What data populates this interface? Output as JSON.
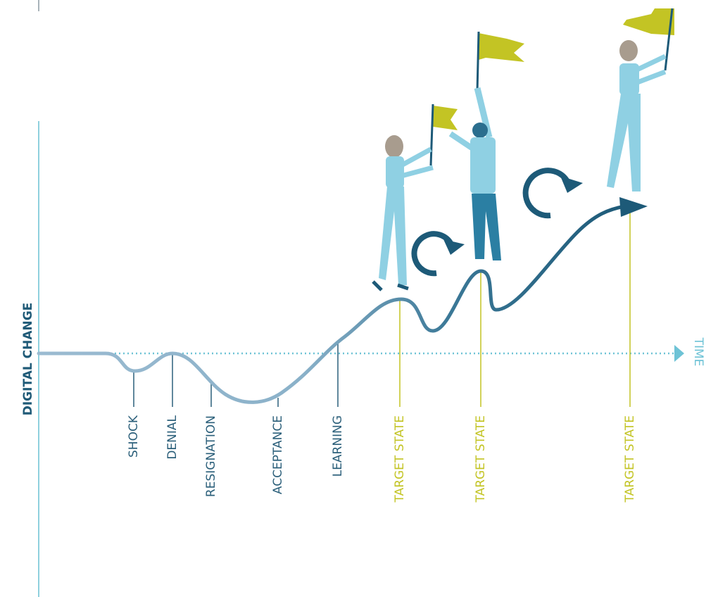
{
  "axes": {
    "y_label": "DIGITAL CHANGE",
    "x_label": "TIME"
  },
  "stages": [
    {
      "label": "SHOCK",
      "color": "#2b5f7a"
    },
    {
      "label": "DENIAL",
      "color": "#2b5f7a"
    },
    {
      "label": "RESIGNATION",
      "color": "#2b5f7a"
    },
    {
      "label": "ACCEPTANCE",
      "color": "#2b5f7a"
    },
    {
      "label": "LEARNING",
      "color": "#2b5f7a"
    },
    {
      "label": "TARGET STATE",
      "color": "#c3c424"
    },
    {
      "label": "TARGET STATE",
      "color": "#c3c424"
    },
    {
      "label": "TARGET STATE",
      "color": "#c3c424"
    }
  ]
}
